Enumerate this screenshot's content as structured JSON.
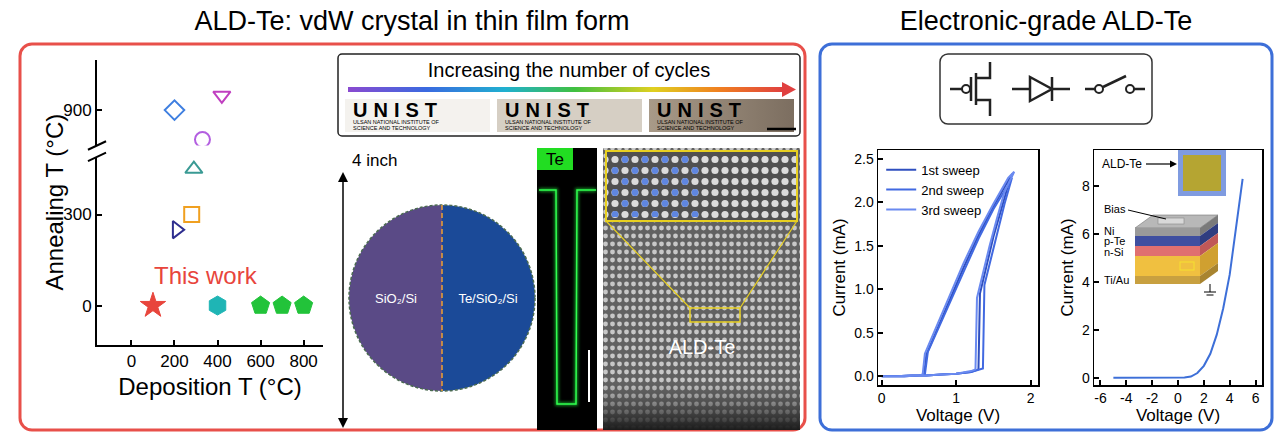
{
  "header": {
    "left_title": "ALD-Te: vdW crystal in thin film form",
    "right_title": "Electronic-grade ALD-Te"
  },
  "chart_data": [
    {
      "type": "scatter",
      "xlabel": "Deposition T (°C)",
      "ylabel": "Annealing T (°C)",
      "xlim": [
        -160,
        890
      ],
      "xticks": [
        0,
        200,
        400,
        600,
        800
      ],
      "ylim": [
        -130,
        490
      ],
      "yticks": [
        0,
        300
      ],
      "y2lim": [
        780,
        1070
      ],
      "y2ticks": [
        900
      ],
      "grid": false,
      "annotations": [
        {
          "text": "This work",
          "x": 100,
          "y": 0
        }
      ],
      "series": [
        {
          "marker": "star",
          "color": "#e8453c",
          "x": [
            100
          ],
          "values": [
            0
          ]
        },
        {
          "marker": "hexagon",
          "color": "#1fb5b5",
          "x": [
            400
          ],
          "values": [
            0
          ]
        },
        {
          "marker": "pentagon",
          "color": "#22c33a",
          "x": [
            600,
            700,
            800
          ],
          "values": [
            0,
            0,
            0
          ]
        },
        {
          "marker": "triangle-right-open",
          "color": "#2e2e8f",
          "x": [
            210
          ],
          "values": [
            250
          ]
        },
        {
          "marker": "square-open",
          "color": "#f0a020",
          "x": [
            280
          ],
          "values": [
            300
          ]
        },
        {
          "marker": "triangle-up-open",
          "color": "#3a9a94",
          "x": [
            290
          ],
          "values": [
            450
          ]
        },
        {
          "marker": "circle-open",
          "color": "#b35fe0",
          "x": [
            330
          ],
          "values": [
            800
          ],
          "axis": "y2"
        },
        {
          "marker": "diamond-open",
          "color": "#3f7fe0",
          "x": [
            200
          ],
          "values": [
            900
          ],
          "axis": "y2"
        },
        {
          "marker": "triangle-down-open",
          "color": "#c03fc0",
          "x": [
            420
          ],
          "values": [
            950
          ],
          "axis": "y2"
        }
      ]
    },
    {
      "type": "line",
      "xlabel": "Voltage (V)",
      "ylabel": "Current (mA)",
      "xlim": [
        -0.05,
        2.1
      ],
      "xticks": [
        0,
        1,
        2
      ],
      "ylim": [
        -0.1,
        2.6
      ],
      "yticks": [
        {
          "value": 0,
          "label": "0.0"
        },
        0.5,
        {
          "value": 1,
          "label": "1.0"
        },
        1.5,
        {
          "value": 2,
          "label": "2.0"
        },
        2.5
      ],
      "grid": false,
      "legend": "top-left",
      "series": [
        {
          "name": "1st sweep",
          "color": "#2f4fbf",
          "x": [
            0,
            0.2,
            0.4,
            0.6,
            0.8,
            1.0,
            1.2,
            1.3,
            1.32,
            1.4,
            1.5,
            1.6,
            1.7,
            1.76,
            1.7,
            1.5,
            1.3,
            1.1,
            0.9,
            0.75,
            0.65,
            0.6,
            0.57,
            0.5,
            0.3,
            0
          ],
          "values": [
            0,
            0,
            0.01,
            0.01,
            0.02,
            0.03,
            0.05,
            0.08,
            0.95,
            1.25,
            1.6,
            1.9,
            2.2,
            2.33,
            2.25,
            1.95,
            1.62,
            1.25,
            0.85,
            0.55,
            0.35,
            0.25,
            0.02,
            0.01,
            0,
            0
          ]
        },
        {
          "name": "2nd sweep",
          "color": "#4169e1",
          "x": [
            0,
            0.2,
            0.4,
            0.6,
            0.8,
            1.0,
            1.2,
            1.36,
            1.38,
            1.45,
            1.55,
            1.65,
            1.75,
            1.7,
            1.5,
            1.3,
            1.1,
            0.9,
            0.75,
            0.65,
            0.62,
            0.58,
            0.5,
            0.3,
            0
          ],
          "values": [
            0,
            0,
            0.01,
            0.01,
            0.02,
            0.03,
            0.05,
            0.09,
            1.05,
            1.3,
            1.65,
            1.98,
            2.28,
            2.2,
            1.92,
            1.58,
            1.2,
            0.82,
            0.52,
            0.34,
            0.28,
            0.02,
            0.01,
            0,
            0
          ]
        },
        {
          "name": "3rd sweep",
          "color": "#6a8af0",
          "x": [
            0,
            0.2,
            0.4,
            0.6,
            0.8,
            1.0,
            1.2,
            1.26,
            1.28,
            1.35,
            1.45,
            1.55,
            1.65,
            1.78,
            1.7,
            1.5,
            1.3,
            1.1,
            0.9,
            0.75,
            0.65,
            0.58,
            0.55,
            0.5,
            0.3,
            0
          ],
          "values": [
            0,
            0,
            0.01,
            0.01,
            0.02,
            0.03,
            0.06,
            0.08,
            0.9,
            1.15,
            1.5,
            1.82,
            2.12,
            2.35,
            2.28,
            1.98,
            1.66,
            1.3,
            0.9,
            0.6,
            0.4,
            0.26,
            0.02,
            0.01,
            0,
            0
          ]
        }
      ]
    },
    {
      "type": "line",
      "xlabel": "Voltage (V)",
      "ylabel": "Current (mA)",
      "xlim": [
        -6.5,
        6.5
      ],
      "xticks": [
        -6,
        -4,
        -2,
        0,
        2,
        4,
        6
      ],
      "ylim": [
        -0.3,
        9.5
      ],
      "yticks": [
        0,
        2,
        4,
        6,
        8
      ],
      "grid": false,
      "series": [
        {
          "color": "#3d6fd8",
          "x": [
            -5,
            -4.5,
            -4,
            -3.5,
            -3,
            -2.5,
            -2,
            -1.5,
            -1,
            -0.5,
            0,
            0.5,
            1,
            1.5,
            2,
            2.5,
            3,
            3.5,
            4,
            4.5,
            5
          ],
          "values": [
            0,
            0,
            0,
            0,
            0,
            0,
            0,
            0,
            0,
            0,
            0,
            0.01,
            0.05,
            0.2,
            0.5,
            1.0,
            1.8,
            2.9,
            4.3,
            6.2,
            8.3
          ]
        }
      ]
    }
  ],
  "cycles": {
    "label": "Increasing the number of cycles",
    "logo": "UNIST",
    "logo_subtitle": [
      "ULSAN NATIONAL INSTITUTE OF",
      "SCIENCE AND TECHNOLOGY"
    ]
  },
  "wafer": {
    "size": "4 inch",
    "left": "SiO₂/Si",
    "right": "Te/SiO₂/Si"
  },
  "eds_map": {
    "label": "Te"
  },
  "tem": {
    "label": "ALD-Te"
  },
  "diode_inset": {
    "photo_label": "ALD-Te",
    "bias": "Bias",
    "layers": [
      "Ni",
      "p-Te",
      "n-Si",
      "Ti/Au"
    ]
  }
}
